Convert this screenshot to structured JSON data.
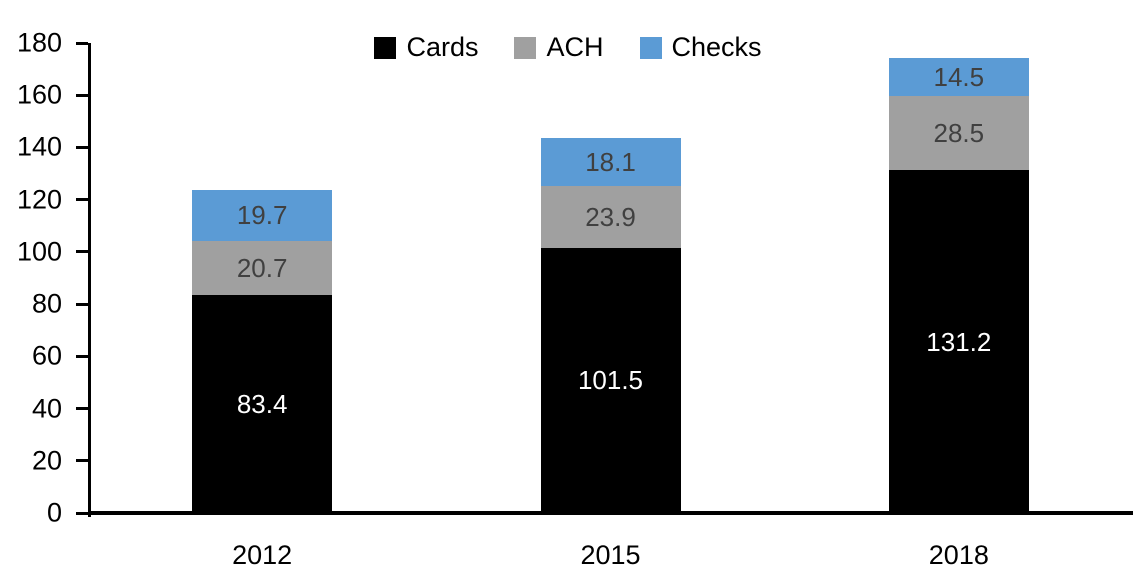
{
  "chart_data": {
    "type": "bar",
    "stacked": true,
    "title": "",
    "xlabel": "",
    "ylabel": "",
    "categories": [
      "2012",
      "2015",
      "2018"
    ],
    "series": [
      {
        "name": "Cards",
        "color": "#000000",
        "label_color": "#ffffff",
        "values": [
          83.4,
          101.5,
          131.2
        ]
      },
      {
        "name": "ACH",
        "color": "#a0a0a0",
        "label_color": "#404040",
        "values": [
          20.7,
          23.9,
          28.5
        ]
      },
      {
        "name": "Checks",
        "color": "#5b9bd5",
        "label_color": "#404040",
        "values": [
          19.7,
          18.1,
          14.5
        ]
      }
    ],
    "totals": [
      123.8,
      143.5,
      174.2
    ],
    "ylim": [
      0,
      180
    ],
    "ytick_step": 20,
    "yticks": [
      0,
      20,
      40,
      60,
      80,
      100,
      120,
      140,
      160,
      180
    ],
    "legend_position": "top-center",
    "legend_order": [
      "Cards",
      "ACH",
      "Checks"
    ],
    "grid": false,
    "axis_color": "#000000",
    "label_decimals": 1
  }
}
